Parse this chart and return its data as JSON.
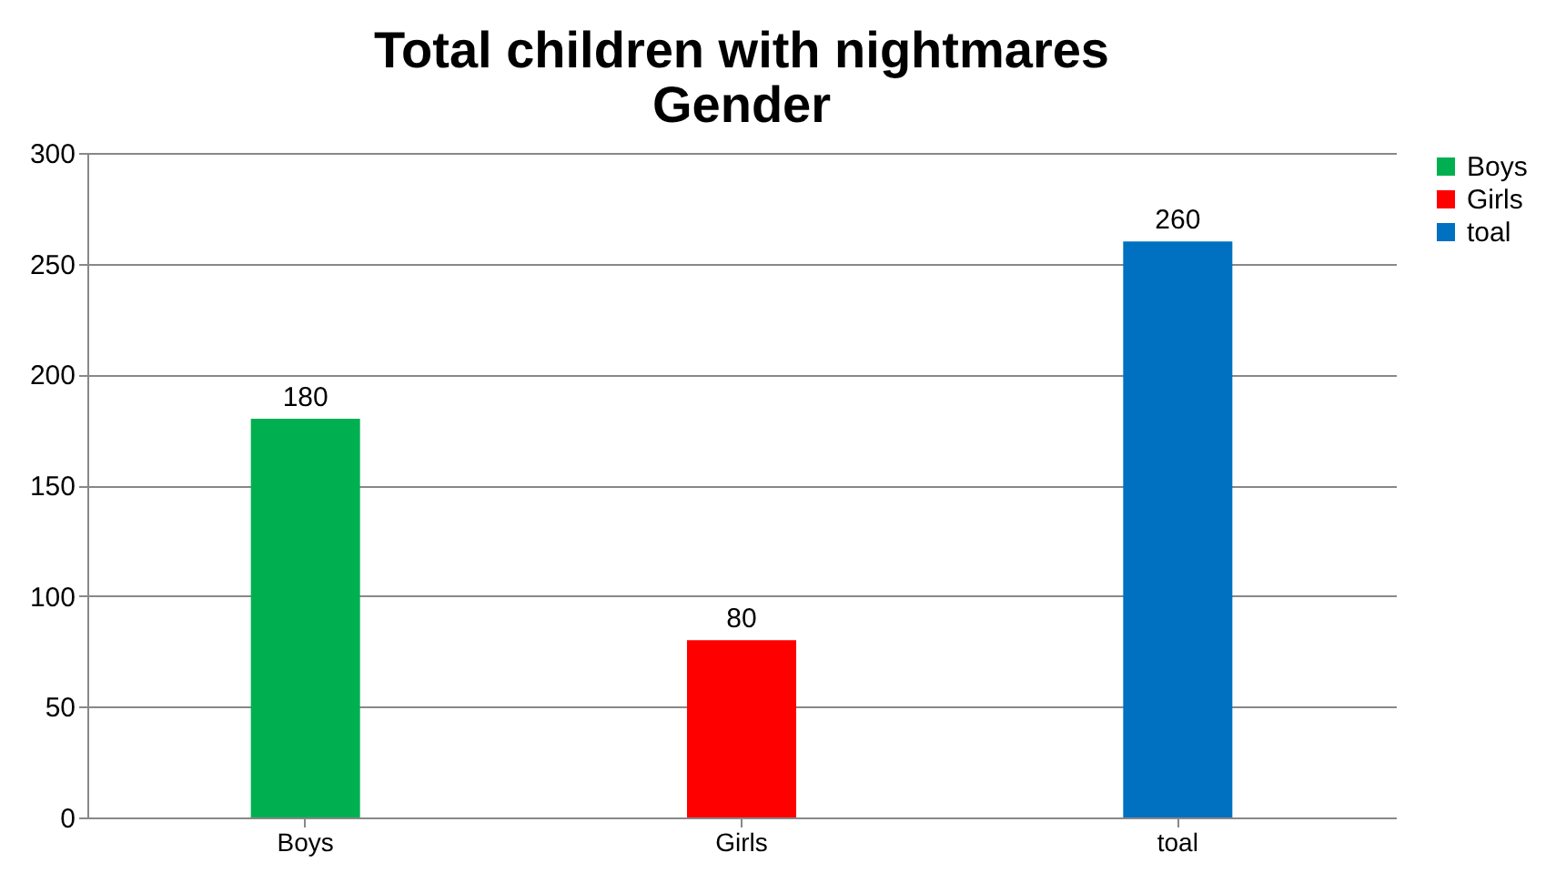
{
  "chart_data": {
    "type": "bar",
    "title": "Total children with nightmares\nGender",
    "categories": [
      "Boys",
      "Girls",
      "toal"
    ],
    "series": [
      {
        "name": "Boys",
        "color": "#00b050",
        "values": [
          180,
          null,
          null
        ]
      },
      {
        "name": "Girls",
        "color": "#ff0000",
        "values": [
          null,
          80,
          null
        ]
      },
      {
        "name": "toal",
        "color": "#0070c0",
        "values": [
          null,
          null,
          260
        ]
      }
    ],
    "ylim": [
      0,
      300
    ],
    "yticks": [
      0,
      50,
      100,
      150,
      200,
      250,
      300
    ],
    "grid": "y",
    "legend": "right",
    "data_labels": true
  }
}
